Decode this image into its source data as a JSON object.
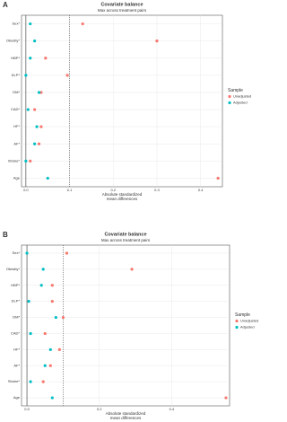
{
  "chart_data": [
    {
      "type": "dot",
      "label": "A",
      "title": "Covariate balance",
      "subtitle": "Max across treatment pairs",
      "xlabel": [
        "Absolute standardized",
        "mean differences"
      ],
      "categories": [
        "Sex*",
        "Obesity*",
        "HBP*",
        "DLP*",
        "DM*",
        "CAD*",
        "HF*",
        "AF*",
        "Stroke*",
        "Age"
      ],
      "legend_title": "Sample",
      "series": [
        {
          "name": "Unadjusted",
          "color": "#F8766D",
          "values": [
            0.13,
            0.3,
            0.045,
            0.095,
            0.035,
            0.02,
            0.035,
            0.03,
            0.01,
            0.44
          ]
        },
        {
          "name": "Adjusted",
          "color": "#00BFC4",
          "values": [
            0.01,
            0.02,
            0.01,
            0.0,
            0.03,
            0.005,
            0.025,
            0.02,
            0.0,
            0.05
          ]
        }
      ],
      "xlim": [
        -0.01,
        0.45
      ],
      "xticks": [
        {
          "value": 0,
          "label": "0.0"
        },
        0.1,
        0.2,
        0.3,
        0.4
      ],
      "threshold": 0.1,
      "grid": true
    },
    {
      "type": "dot",
      "label": "B",
      "title": "Covariate balance",
      "subtitle": "Max across treatment pairs",
      "xlabel": [
        "Absolute standardized",
        "mean differences"
      ],
      "categories": [
        "Sex*",
        "Obesity*",
        "HBP*",
        "DLP*",
        "DM*",
        "CAD*",
        "HF*",
        "AF*",
        "Stroke*",
        "Age"
      ],
      "legend_title": "Sample",
      "series": [
        {
          "name": "Unadjusted",
          "color": "#F8766D",
          "values": [
            0.11,
            0.29,
            0.07,
            0.07,
            0.1,
            0.05,
            0.09,
            0.065,
            0.045,
            0.55
          ]
        },
        {
          "name": "Adjusted",
          "color": "#00BFC4",
          "values": [
            0.0,
            0.045,
            0.04,
            0.005,
            0.08,
            0.01,
            0.065,
            0.05,
            0.01,
            0.07
          ]
        }
      ],
      "xlim": [
        -0.015,
        0.56
      ],
      "xticks": [
        {
          "value": 0,
          "label": "0.0"
        },
        0.2,
        0.4
      ],
      "threshold": 0.1,
      "grid": true
    }
  ]
}
